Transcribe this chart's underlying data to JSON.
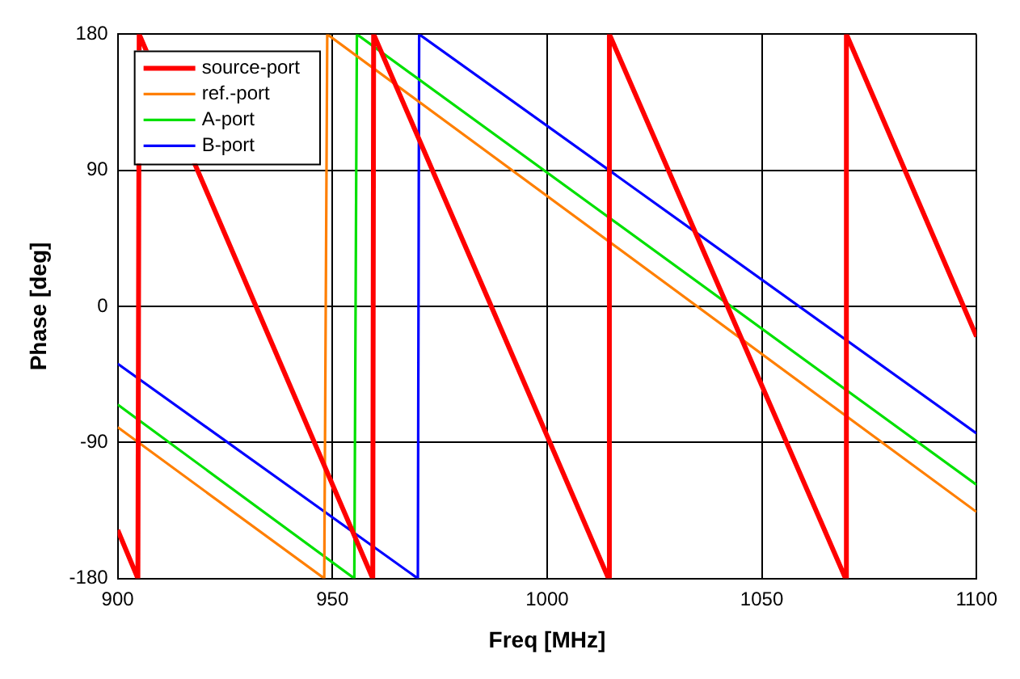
{
  "chart_data": {
    "type": "line",
    "xlabel": "Freq [MHz]",
    "ylabel": "Phase [deg]",
    "xlim": [
      900,
      1100
    ],
    "xticks": [
      900,
      950,
      1000,
      1050,
      1100
    ],
    "ylim": [
      -180,
      180
    ],
    "yticks": [
      -180,
      -90,
      0,
      90,
      180
    ],
    "grid": true,
    "legend": "top left",
    "marker": "none",
    "line_style": "solid",
    "series": [
      {
        "name": "source-port",
        "color": "#ff0000",
        "x": [
          900,
          904.7,
          905,
          932.2,
          959.4,
          959.6,
          987,
          1014.3,
          1014.5,
          1042,
          1069.5,
          1069.7,
          1100
        ],
        "values": [
          -148,
          -180,
          180,
          0,
          -180,
          180,
          0,
          -180,
          180,
          0,
          -180,
          180,
          -20
        ]
      },
      {
        "name": "ref.-port",
        "color": "#ff7f00",
        "x": [
          900,
          948.1,
          948.8,
          1100
        ],
        "values": [
          -80,
          -180,
          180,
          -136
        ]
      },
      {
        "name": "A-port",
        "color": "#00e000",
        "x": [
          900,
          955.1,
          955.7,
          1100
        ],
        "values": [
          -65,
          -180,
          180,
          -118
        ]
      },
      {
        "name": "B-port",
        "color": "#0000ff",
        "x": [
          900,
          969.9,
          970.2,
          1100
        ],
        "values": [
          -38,
          -180,
          180,
          -84
        ]
      }
    ]
  }
}
